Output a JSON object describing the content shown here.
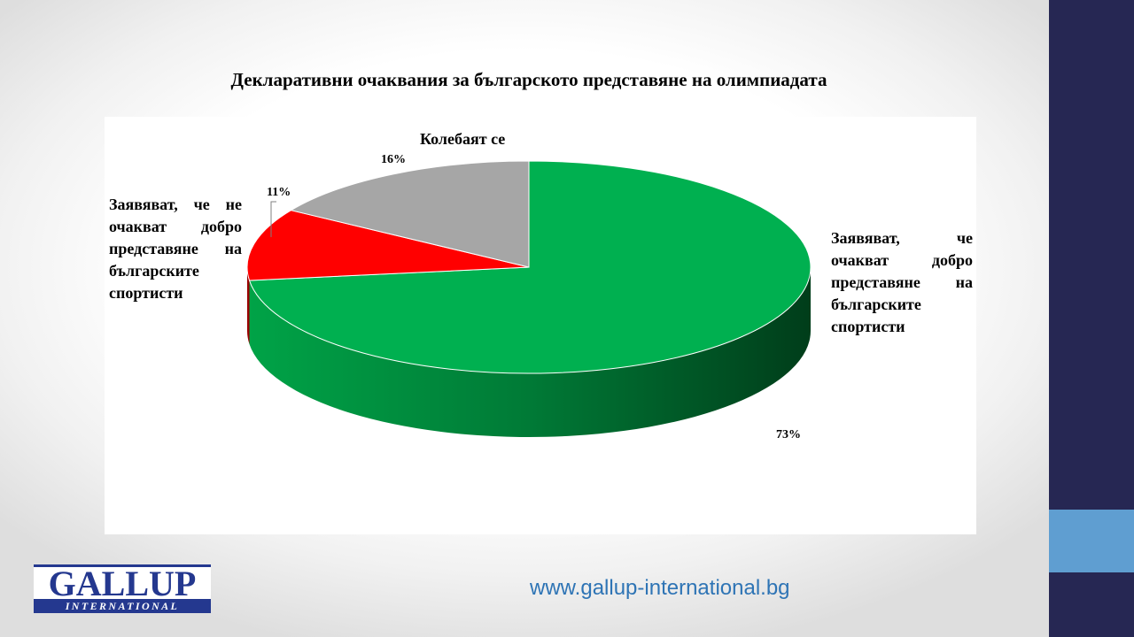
{
  "chart_data": {
    "type": "pie",
    "title": "Декларативни очаквания за българското представяне на олимпиадата",
    "slices": [
      {
        "label": "Заявяват, че очакват добро представяне на българските спортисти",
        "value": 73,
        "value_label": "73%",
        "color": "#00b050"
      },
      {
        "label": "Заявяват, че не очакват добро представяне на българските спортисти",
        "value": 11,
        "value_label": "11%",
        "color": "#ff0000"
      },
      {
        "label": "Колебаят се",
        "value": 16,
        "value_label": "16%",
        "color": "#a6a6a6"
      }
    ],
    "style": "3d"
  },
  "footer": {
    "logo_main": "GALLUP",
    "logo_sub": "INTERNATIONAL",
    "website": "www.gallup-international.bg"
  },
  "colors": {
    "sidebar": "#262753",
    "sidebar_accent": "#5f9ed1",
    "website_text": "#2e74b5"
  }
}
